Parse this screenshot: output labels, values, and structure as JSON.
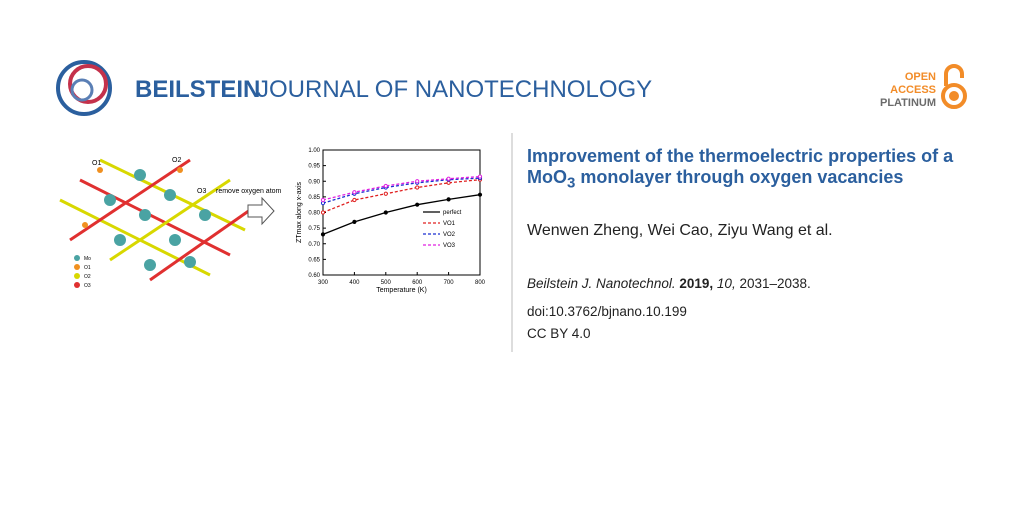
{
  "header": {
    "journal_bold": "BEILSTEIN",
    "journal_light": "JOURNAL OF NANOTECHNOLOGY",
    "badge": [
      "OPEN",
      "ACCESS",
      "PLATINUM"
    ]
  },
  "article": {
    "title": [
      "Improvement of the thermoelectric proper­ties of a MoO",
      "3",
      " monolayer through oxygen vacancies"
    ],
    "authors": "Wenwen Zheng, Wei Cao, Ziyu Wang et al.",
    "citation": {
      "journal": "Beilstein J. Nanotechnol.",
      "year": "2019,",
      "volume": "10,",
      "pages": "2031–2038."
    },
    "doi": "doi:10.3762/bjnano.10.199",
    "license": "CC BY 4.0"
  },
  "figure": {
    "labels": [
      "O1",
      "O2",
      "O3"
    ],
    "arrow_text": "remove oxygen atom",
    "legend": [
      "Mo",
      "O1",
      "O2",
      "O3"
    ]
  },
  "chart_data": {
    "type": "line",
    "xlabel": "Temperature (K)",
    "ylabel": "ZTmax along x-axis",
    "x": [
      300,
      400,
      500,
      600,
      700,
      800
    ],
    "series": [
      {
        "name": "perfect",
        "color": "#000000",
        "values": [
          0.73,
          0.77,
          0.8,
          0.825,
          0.842,
          0.857
        ]
      },
      {
        "name": "VO1",
        "color": "#e02020",
        "values": [
          0.8,
          0.84,
          0.86,
          0.88,
          0.895,
          0.905
        ]
      },
      {
        "name": "VO2",
        "color": "#1a2fd0",
        "values": [
          0.83,
          0.86,
          0.88,
          0.895,
          0.905,
          0.91
        ]
      },
      {
        "name": "VO3",
        "color": "#e020e0",
        "values": [
          0.84,
          0.865,
          0.885,
          0.9,
          0.908,
          0.915
        ]
      }
    ],
    "xlim": [
      300,
      800
    ],
    "xticks": [
      300,
      400,
      500,
      600,
      700,
      800
    ],
    "ylim": [
      0.6,
      1.0
    ],
    "yticks": [
      {
        "value": 0.6,
        "label": "0.60"
      },
      {
        "value": 0.65,
        "label": "0.65"
      },
      {
        "value": 0.7,
        "label": "0.70"
      },
      {
        "value": 0.75,
        "label": "0.75"
      },
      {
        "value": 0.8,
        "label": "0.80"
      },
      {
        "value": 0.85,
        "label": "0.85"
      },
      {
        "value": 0.9,
        "label": "0.90"
      },
      {
        "value": 0.95,
        "label": "0.95"
      },
      {
        "value": 1.0,
        "label": "1.00"
      }
    ]
  }
}
